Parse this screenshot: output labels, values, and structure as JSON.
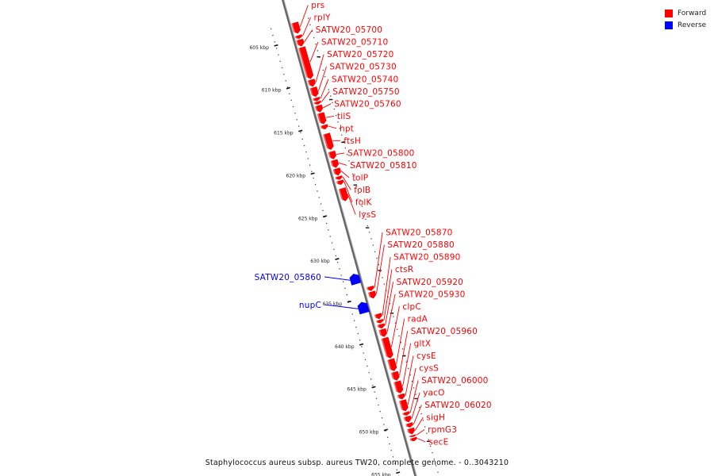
{
  "caption": "Staphylococcus aureus subsp. aureus TW20, complete genome. - 0..3043210",
  "legend": [
    {
      "label": "Forward",
      "color": "#ff0000"
    },
    {
      "label": "Reverse",
      "color": "#0000ff"
    }
  ],
  "colors": {
    "forward": "#ff0000",
    "reverse": "#0000ff",
    "backbone": "#666666"
  },
  "ticks": [
    {
      "kbp": 605,
      "label": "605 kbp"
    },
    {
      "kbp": 610,
      "label": "610 kbp"
    },
    {
      "kbp": 615,
      "label": "615 kbp"
    },
    {
      "kbp": 620,
      "label": "620 kbp"
    },
    {
      "kbp": 625,
      "label": "625 kbp"
    },
    {
      "kbp": 630,
      "label": "630 kbp"
    },
    {
      "kbp": 635,
      "label": "635 kbp"
    },
    {
      "kbp": 640,
      "label": "640 kbp"
    },
    {
      "kbp": 645,
      "label": "645 kbp"
    },
    {
      "kbp": 650,
      "label": "650 kbp"
    },
    {
      "kbp": 655,
      "label": "655 kbp"
    }
  ],
  "forward_genes": [
    {
      "name": "prs",
      "start": 603.1,
      "end": 604.4
    },
    {
      "name": "rplY",
      "start": 604.6,
      "end": 605.0
    },
    {
      "name": "SATW20_05700",
      "start": 605.1,
      "end": 605.9
    },
    {
      "name": "SATW20_05710",
      "start": 606.0,
      "end": 609.7
    },
    {
      "name": "SATW20_05720",
      "start": 609.8,
      "end": 610.6
    },
    {
      "name": "SATW20_05730",
      "start": 610.7,
      "end": 611.8
    },
    {
      "name": "SATW20_05740",
      "start": 611.9,
      "end": 612.3
    },
    {
      "name": "SATW20_05750",
      "start": 612.35,
      "end": 612.7
    },
    {
      "name": "SATW20_05760",
      "start": 612.8,
      "end": 613.6
    },
    {
      "name": "tilS",
      "start": 613.7,
      "end": 615.0
    },
    {
      "name": "hpt",
      "start": 615.1,
      "end": 615.6
    },
    {
      "name": "ftsH",
      "start": 616.1,
      "end": 618.0
    },
    {
      "name": "SATW20_05800",
      "start": 618.2,
      "end": 619.1
    },
    {
      "name": "SATW20_05810",
      "start": 619.2,
      "end": 620.1
    },
    {
      "name": "folP",
      "start": 620.2,
      "end": 621.0
    },
    {
      "name": "folB",
      "start": 621.1,
      "end": 621.5
    },
    {
      "name": "folK",
      "start": 621.6,
      "end": 622.1
    },
    {
      "name": "lysS",
      "start": 622.5,
      "end": 624.0
    },
    {
      "name": "SATW20_05870",
      "start": 634.0,
      "end": 634.5
    },
    {
      "name": "SATW20_05880",
      "start": 634.6,
      "end": 635.4
    },
    {
      "name": "SATW20_05890",
      "start": 637.2,
      "end": 637.8
    },
    {
      "name": "ctsR",
      "start": 637.9,
      "end": 638.3
    },
    {
      "name": "SATW20_05920",
      "start": 638.4,
      "end": 638.9
    },
    {
      "name": "SATW20_05930",
      "start": 639.0,
      "end": 639.9
    },
    {
      "name": "clpC",
      "start": 640.0,
      "end": 642.4
    },
    {
      "name": "radA",
      "start": 642.5,
      "end": 643.9
    },
    {
      "name": "SATW20_05960",
      "start": 644.0,
      "end": 645.0
    },
    {
      "name": "gltX",
      "start": 645.1,
      "end": 646.5
    },
    {
      "name": "cysE",
      "start": 646.6,
      "end": 647.2
    },
    {
      "name": "cysS",
      "start": 647.3,
      "end": 648.6
    },
    {
      "name": "SATW20_06000",
      "start": 648.7,
      "end": 649.1
    },
    {
      "name": "yacO",
      "start": 649.2,
      "end": 649.9
    },
    {
      "name": "SATW20_06020",
      "start": 650.0,
      "end": 650.5
    },
    {
      "name": "sigH",
      "start": 650.6,
      "end": 651.3
    },
    {
      "name": "rpmG3",
      "start": 651.4,
      "end": 651.6
    },
    {
      "name": "secE",
      "start": 651.7,
      "end": 652.1
    }
  ],
  "reverse_genes": [
    {
      "name": "SATW20_05860",
      "start": 632.1,
      "end": 633.3
    },
    {
      "name": "nupC",
      "start": 635.4,
      "end": 636.7
    }
  ]
}
